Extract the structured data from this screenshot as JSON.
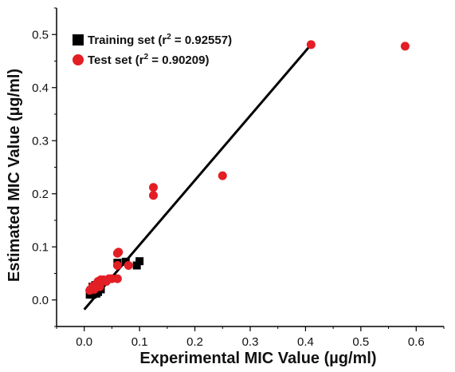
{
  "chart_data": {
    "type": "scatter",
    "xlabel": "Experimental MIC Value (µg/ml)",
    "ylabel": "Estimated MIC Value (µg/ml)",
    "xlim": [
      -0.05,
      0.65
    ],
    "ylim": [
      -0.05,
      0.55
    ],
    "xticks": [
      0.0,
      0.1,
      0.2,
      0.3,
      0.4,
      0.5,
      0.6
    ],
    "xtick_labels": [
      "0.0",
      "0.1",
      "0.2",
      "0.3",
      "0.4",
      "0.5",
      "0.6"
    ],
    "yticks": [
      0.0,
      0.1,
      0.2,
      0.3,
      0.4,
      0.5
    ],
    "ytick_labels": [
      "0.0",
      "0.1",
      "0.2",
      "0.3",
      "0.4",
      "0.5"
    ],
    "grid": false,
    "legend_position": "top-left",
    "series": [
      {
        "name": "Training set (r² = 0.92557)",
        "legend_prefix": "Training set (r",
        "legend_sup": "2",
        "legend_suffix": " = 0.92557)",
        "marker": "square",
        "color": "#000000",
        "points": [
          [
            0.01,
            0.01
          ],
          [
            0.012,
            0.012
          ],
          [
            0.015,
            0.01
          ],
          [
            0.015,
            0.015
          ],
          [
            0.018,
            0.012
          ],
          [
            0.02,
            0.013
          ],
          [
            0.022,
            0.012
          ],
          [
            0.025,
            0.015
          ],
          [
            0.018,
            0.02
          ],
          [
            0.015,
            0.025
          ],
          [
            0.02,
            0.022
          ],
          [
            0.025,
            0.025
          ],
          [
            0.02,
            0.028
          ],
          [
            0.012,
            0.018
          ],
          [
            0.03,
            0.02
          ],
          [
            0.06,
            0.07
          ],
          [
            0.075,
            0.072
          ],
          [
            0.095,
            0.065
          ],
          [
            0.1,
            0.073
          ]
        ]
      },
      {
        "name": "Test set (r² = 0.90209)",
        "legend_prefix": "Test set (r",
        "legend_sup": "2",
        "legend_suffix": " = 0.90209)",
        "marker": "circle",
        "color": "#e31e24",
        "points": [
          [
            0.01,
            0.018
          ],
          [
            0.015,
            0.025
          ],
          [
            0.018,
            0.02
          ],
          [
            0.02,
            0.022
          ],
          [
            0.022,
            0.03
          ],
          [
            0.025,
            0.035
          ],
          [
            0.028,
            0.025
          ],
          [
            0.03,
            0.038
          ],
          [
            0.035,
            0.038
          ],
          [
            0.04,
            0.035
          ],
          [
            0.045,
            0.04
          ],
          [
            0.05,
            0.04
          ],
          [
            0.06,
            0.04
          ],
          [
            0.06,
            0.065
          ],
          [
            0.06,
            0.088
          ],
          [
            0.062,
            0.09
          ],
          [
            0.08,
            0.065
          ],
          [
            0.125,
            0.197
          ],
          [
            0.125,
            0.212
          ],
          [
            0.25,
            0.234
          ],
          [
            0.41,
            0.481
          ],
          [
            0.58,
            0.478
          ]
        ]
      }
    ],
    "fit_line": {
      "x": [
        0.0,
        0.41
      ],
      "y": [
        -0.018,
        0.481
      ],
      "color": "#000000"
    }
  }
}
